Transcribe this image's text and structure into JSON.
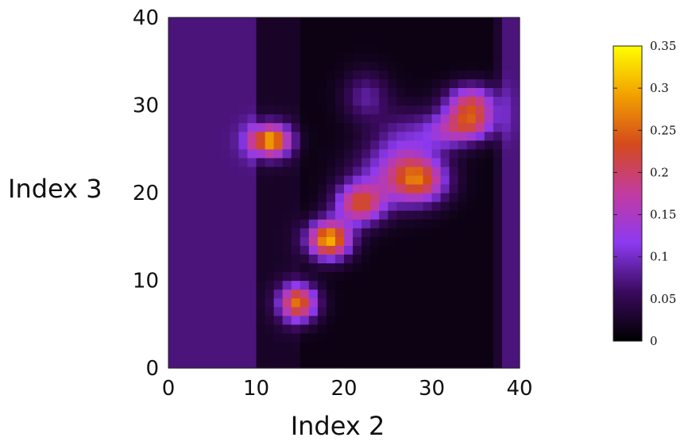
{
  "chart_data": {
    "type": "heatmap",
    "title": "",
    "xlabel": "Index 2",
    "ylabel": "Index 3",
    "xlim": [
      0,
      40
    ],
    "ylim": [
      0,
      40
    ],
    "x_ticks": [
      "0",
      "10",
      "20",
      "30",
      "40"
    ],
    "y_ticks": [
      "0",
      "10",
      "20",
      "30",
      "40"
    ],
    "grid": false,
    "grid_size": [
      40,
      40
    ],
    "background": {
      "outer_left_x": [
        0,
        10
      ],
      "outer_left_value": 0.07,
      "band_x": [
        10,
        15
      ],
      "band_value": 0.025,
      "inner_value": 0.012,
      "inner_x": [
        15,
        37
      ],
      "band_right_x": [
        37,
        38
      ],
      "band_right_value": 0.03,
      "outer_right_x": [
        38,
        40
      ],
      "outer_right_value": 0.07
    },
    "blobs": [
      {
        "x": 11.6,
        "y": 26.0,
        "peak": 0.28,
        "sx": 1.6,
        "sy": 1.3
      },
      {
        "x": 14.8,
        "y": 7.5,
        "peak": 0.24,
        "sx": 1.5,
        "sy": 1.5
      },
      {
        "x": 18.3,
        "y": 14.7,
        "peak": 0.29,
        "sx": 1.7,
        "sy": 1.5
      },
      {
        "x": 21.8,
        "y": 18.8,
        "peak": 0.2,
        "sx": 1.9,
        "sy": 1.6
      },
      {
        "x": 28.6,
        "y": 21.5,
        "peak": 0.2,
        "sx": 2.2,
        "sy": 1.8
      },
      {
        "x": 25.0,
        "y": 22.0,
        "peak": 0.09,
        "sx": 3.0,
        "sy": 2.5
      },
      {
        "x": 22.5,
        "y": 31.0,
        "peak": 0.07,
        "sx": 1.8,
        "sy": 2.0
      },
      {
        "x": 27.0,
        "y": 26.0,
        "peak": 0.07,
        "sx": 2.5,
        "sy": 2.5
      },
      {
        "x": 34.5,
        "y": 30.5,
        "peak": 0.16,
        "sx": 2.0,
        "sy": 1.4
      },
      {
        "x": 34.5,
        "y": 28.0,
        "peak": 0.17,
        "sx": 2.0,
        "sy": 1.4
      },
      {
        "x": 31.5,
        "y": 27.0,
        "peak": 0.09,
        "sx": 2.0,
        "sy": 1.5
      }
    ],
    "colorbar": {
      "min": 0,
      "max": 0.35,
      "ticks": [
        {
          "value": 0,
          "label": "0"
        },
        {
          "value": 0.05,
          "label": "0.05"
        },
        {
          "value": 0.1,
          "label": "0.1"
        },
        {
          "value": 0.15,
          "label": "0.15"
        },
        {
          "value": 0.2,
          "label": "0.2"
        },
        {
          "value": 0.25,
          "label": "0.25"
        },
        {
          "value": 0.3,
          "label": "0.3"
        },
        {
          "value": 0.35,
          "label": "0.35"
        }
      ],
      "colors": [
        "#000000",
        "#3a0a5e",
        "#8c3af0",
        "#c23ba0",
        "#d44a1c",
        "#f2a000",
        "#ffff00"
      ]
    }
  }
}
